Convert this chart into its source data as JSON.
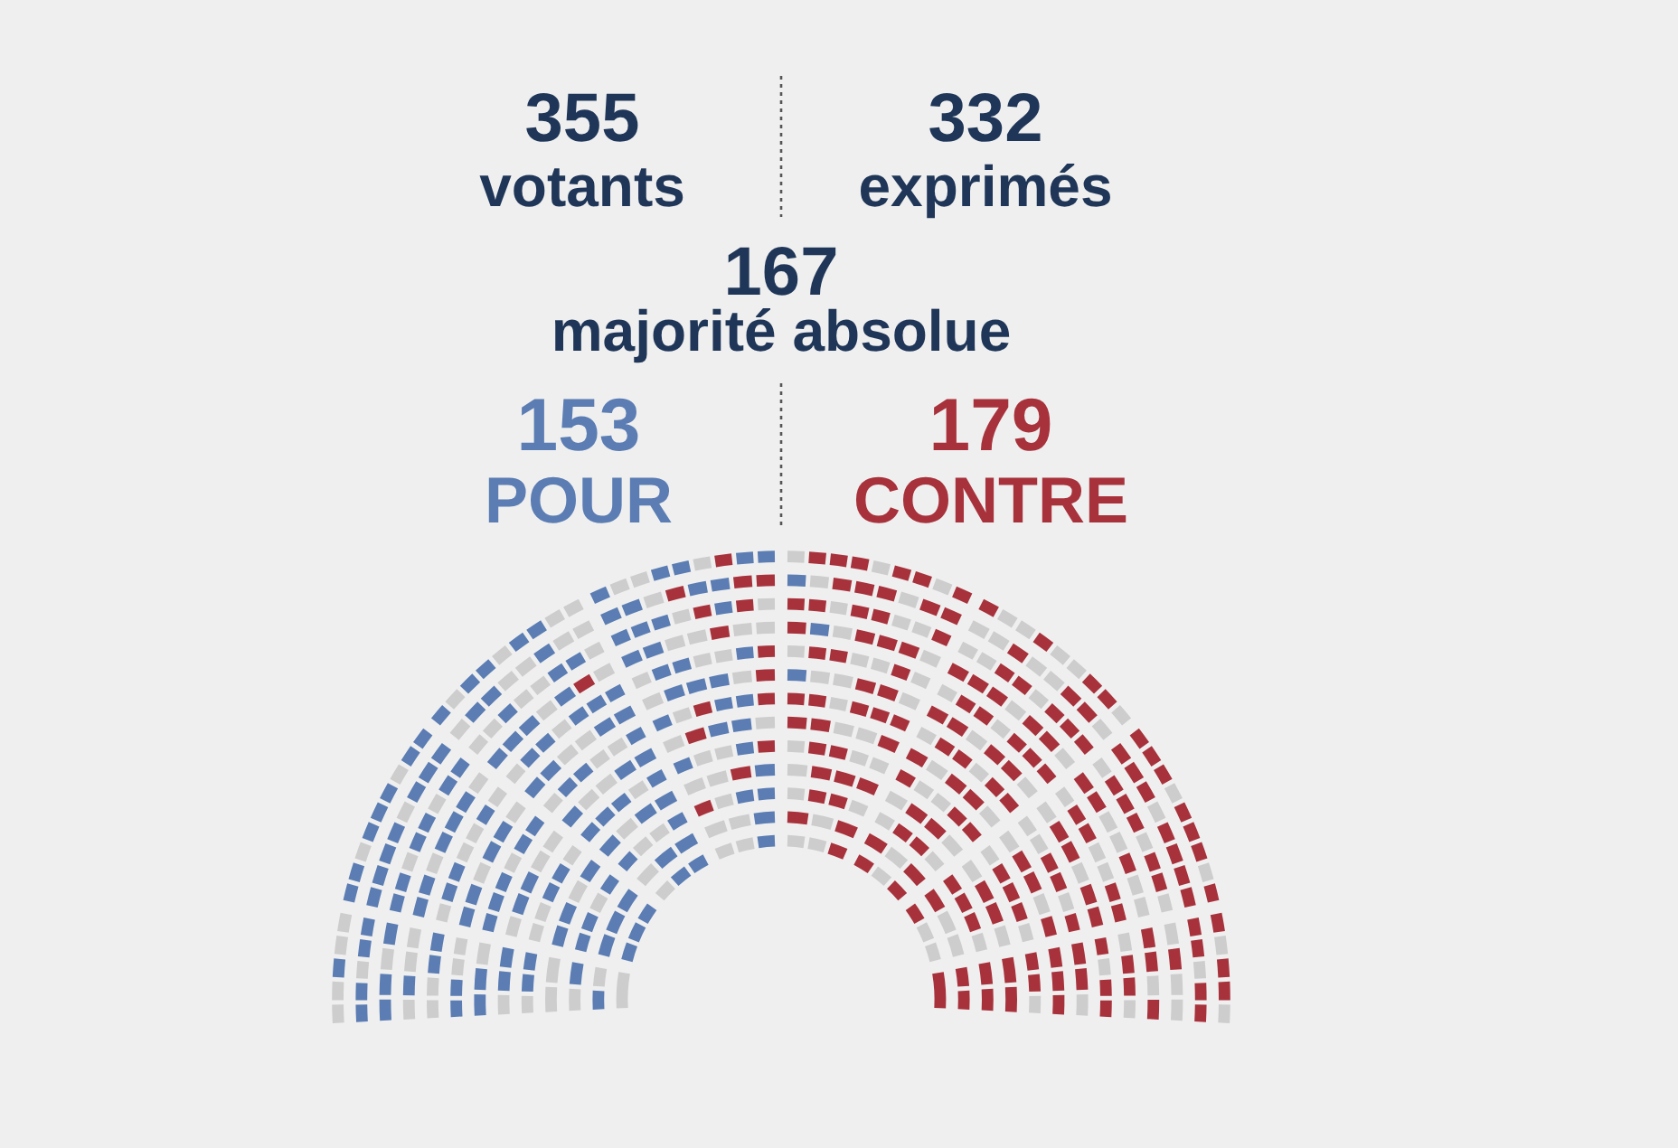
{
  "chart_data": {
    "type": "other",
    "annotations": [
      "355 votants",
      "332 exprimés",
      "167 majorité absolue"
    ],
    "categories": [
      "POUR",
      "CONTRE"
    ],
    "values": [
      153,
      179
    ],
    "colors": [
      "#5b7db3",
      "#a8323c"
    ],
    "data_labels": true
  }
}
